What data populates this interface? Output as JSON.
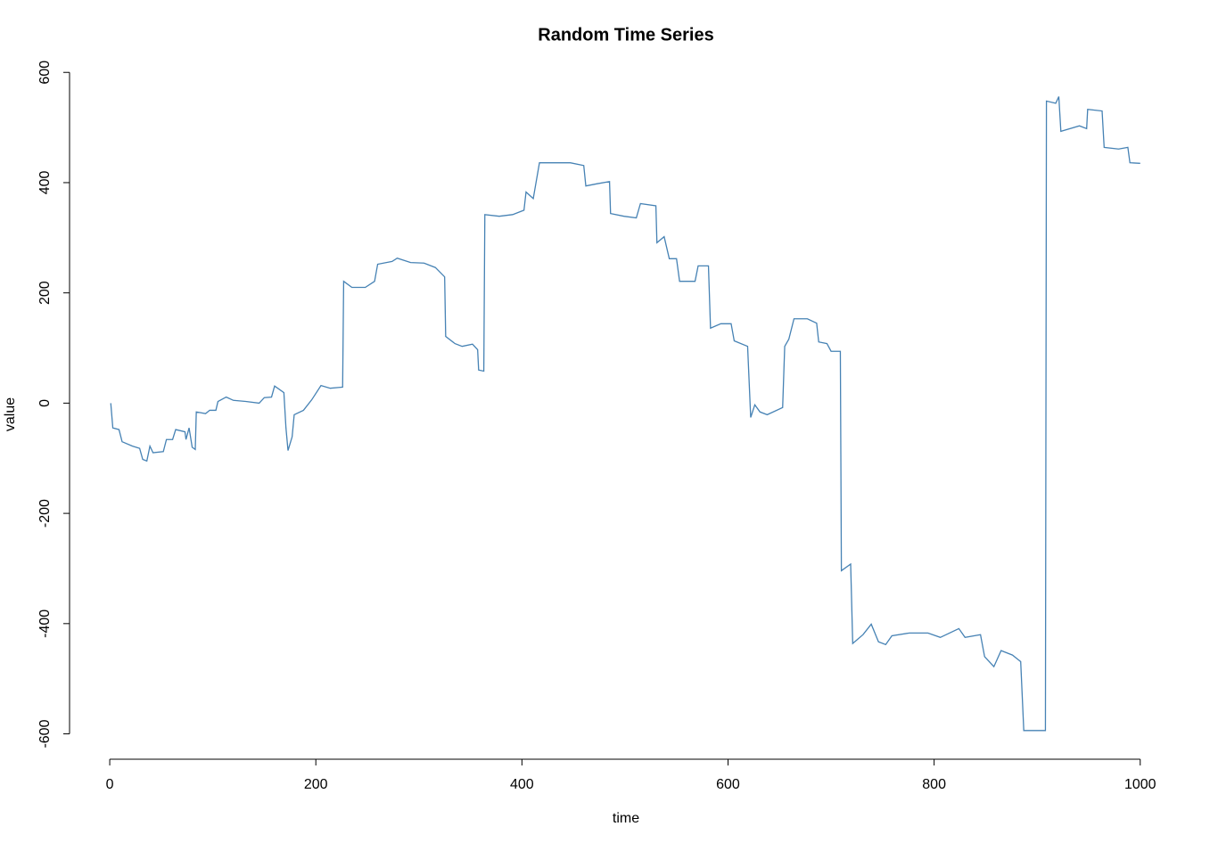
{
  "chart_data": {
    "type": "line",
    "title": "Random Time Series",
    "x_label": "time",
    "y_label": "value",
    "x": [
      1,
      3,
      9,
      12,
      22,
      29,
      32,
      36,
      39,
      42,
      52,
      55,
      61,
      64,
      73,
      74,
      77,
      80,
      83,
      84,
      93,
      97,
      103,
      105,
      113,
      120,
      132,
      145,
      150,
      157,
      160,
      169,
      171,
      173,
      177,
      179,
      188,
      196,
      205,
      214,
      226,
      227,
      235,
      248,
      257,
      260,
      274,
      279,
      292,
      305,
      316,
      325,
      326,
      335,
      342,
      352,
      357,
      358,
      363,
      364,
      378,
      391,
      402,
      404,
      411,
      417,
      430,
      447,
      460,
      462,
      473,
      485,
      486,
      499,
      511,
      515,
      530,
      531,
      538,
      543,
      550,
      553,
      568,
      571,
      581,
      583,
      593,
      603,
      606,
      619,
      622,
      626,
      631,
      638,
      653,
      655,
      659,
      664,
      677,
      686,
      688,
      696,
      700,
      709,
      710,
      719,
      721,
      731,
      739,
      746,
      753,
      759,
      776,
      794,
      806,
      824,
      830,
      845,
      849,
      858,
      865,
      876,
      884,
      887,
      897,
      908,
      909,
      918,
      921,
      923,
      941,
      948,
      949,
      963,
      965,
      979,
      988,
      990,
      1000
    ],
    "values": [
      0,
      -45,
      -48,
      -70,
      -78,
      -82,
      -102,
      -105,
      -78,
      -90,
      -88,
      -66,
      -66,
      -48,
      -52,
      -66,
      -45,
      -80,
      -84,
      -16,
      -19,
      -13,
      -13,
      3,
      11,
      5,
      3,
      0,
      10,
      11,
      31,
      19,
      -45,
      -86,
      -61,
      -21,
      -13,
      6,
      32,
      27,
      29,
      221,
      210,
      210,
      221,
      252,
      257,
      263,
      255,
      254,
      246,
      229,
      121,
      108,
      103,
      107,
      97,
      60,
      58,
      342,
      339,
      342,
      350,
      383,
      371,
      436,
      436,
      436,
      431,
      394,
      398,
      402,
      344,
      339,
      336,
      362,
      358,
      291,
      302,
      262,
      262,
      221,
      221,
      249,
      249,
      136,
      144,
      144,
      113,
      103,
      -26,
      -3,
      -16,
      -21,
      -8,
      103,
      116,
      153,
      153,
      145,
      111,
      108,
      94,
      94,
      -304,
      -292,
      -436,
      -420,
      -401,
      -433,
      -438,
      -422,
      -417,
      -417,
      -425,
      -409,
      -425,
      -420,
      -460,
      -478,
      -449,
      -457,
      -469,
      -594,
      -594,
      -594,
      548,
      544,
      556,
      493,
      503,
      498,
      533,
      530,
      464,
      461,
      464,
      436,
      435
    ],
    "color": "#4682b4",
    "xlim": [
      -39,
      1040
    ],
    "xticks": [
      0,
      200,
      400,
      600,
      800,
      1000
    ],
    "ylim": [
      -646,
      602
    ],
    "yticks": [
      -600,
      -400,
      -200,
      0,
      200,
      400,
      600
    ]
  }
}
